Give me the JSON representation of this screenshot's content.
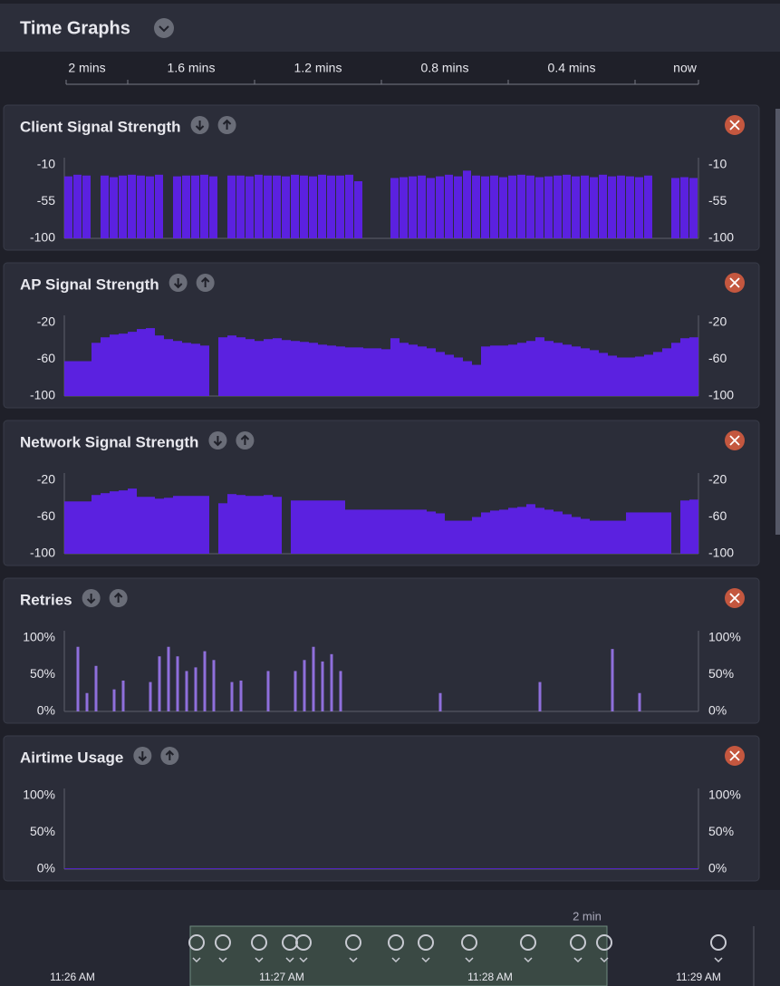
{
  "header": {
    "title": "Time Graphs"
  },
  "time_axis": {
    "labels": [
      "2 mins",
      "1.6 mins",
      "1.2 mins",
      "0.8 mins",
      "0.4 mins",
      "now"
    ]
  },
  "panels": [
    {
      "title": "Client Signal Strength",
      "color": "#5b21e0",
      "ylim": [
        -100,
        -10
      ],
      "yticks": [
        -10,
        -55,
        -100
      ],
      "values": [
        -24,
        -22,
        -23,
        null,
        -23,
        -25,
        -23,
        -22,
        -23,
        -24,
        -22,
        null,
        -24,
        -23,
        -23,
        -22,
        -24,
        null,
        -23,
        -23,
        -24,
        -22,
        -23,
        -23,
        -24,
        -22,
        -23,
        -24,
        -22,
        -23,
        -23,
        -22,
        -30,
        null,
        null,
        null,
        -26,
        -25,
        -24,
        -23,
        -26,
        -24,
        -22,
        -24,
        -17,
        -23,
        -24,
        -23,
        -25,
        -23,
        -22,
        -23,
        -25,
        -24,
        -23,
        -22,
        -24,
        -23,
        -25,
        -22,
        -24,
        -23,
        -24,
        -25,
        -23,
        null,
        null,
        -26,
        -25,
        -26
      ]
    },
    {
      "title": "AP Signal Strength",
      "color": "#5b21e0",
      "ylim": [
        -100,
        -20
      ],
      "yticks": [
        -20,
        -60,
        -100
      ],
      "values": [
        -62,
        -62,
        -62,
        -42,
        -36,
        -33,
        -32,
        -30,
        -27,
        -26,
        -34,
        -38,
        -40,
        -42,
        -43,
        -45,
        -100,
        -36,
        -34,
        -36,
        -38,
        -40,
        -38,
        -37,
        -39,
        -40,
        -41,
        -42,
        -44,
        -45,
        -46,
        -47,
        -47,
        -48,
        -48,
        -49,
        -37,
        -42,
        -44,
        -46,
        -48,
        -52,
        -55,
        -58,
        -62,
        -66,
        -46,
        -45,
        -45,
        -44,
        -42,
        -40,
        -36,
        -40,
        -42,
        -44,
        -46,
        -48,
        -50,
        -53,
        -56,
        -58,
        -58,
        -57,
        -55,
        -52,
        -48,
        -42,
        -37,
        -36
      ]
    },
    {
      "title": "Network Signal Strength",
      "color": "#5b21e0",
      "ylim": [
        -100,
        -20
      ],
      "yticks": [
        -20,
        -60,
        -100
      ],
      "values": [
        -43,
        -43,
        -43,
        -36,
        -34,
        -32,
        -31,
        -29,
        -38,
        -38,
        -40,
        -39,
        -37,
        -37,
        -37,
        -37,
        -100,
        -45,
        -35,
        -36,
        -37,
        -37,
        -36,
        -38,
        -100,
        -42,
        -42,
        -42,
        -42,
        -42,
        -42,
        -52,
        -52,
        -52,
        -52,
        -52,
        -52,
        -52,
        -52,
        -52,
        -54,
        -56,
        -64,
        -64,
        -64,
        -60,
        -55,
        -53,
        -52,
        -50,
        -49,
        -46,
        -50,
        -52,
        -54,
        -57,
        -60,
        -62,
        -64,
        -64,
        -64,
        -64,
        -55,
        -55,
        -55,
        -55,
        -55,
        -100,
        -42,
        -41
      ]
    },
    {
      "title": "Retries",
      "color": "#8f6fdc",
      "ylim": [
        0,
        100
      ],
      "yticks": [
        {
          "value": 100,
          "label": "100%"
        },
        {
          "value": 50,
          "label": "50%"
        },
        {
          "value": 0,
          "label": "0%"
        }
      ],
      "values": [
        0,
        88,
        25,
        62,
        0,
        30,
        42,
        0,
        0,
        40,
        75,
        88,
        75,
        55,
        60,
        82,
        70,
        0,
        40,
        42,
        0,
        0,
        55,
        0,
        0,
        55,
        70,
        88,
        68,
        78,
        55,
        0,
        0,
        0,
        0,
        0,
        0,
        0,
        0,
        0,
        0,
        25,
        0,
        0,
        0,
        0,
        0,
        0,
        0,
        0,
        0,
        0,
        40,
        0,
        0,
        0,
        0,
        0,
        0,
        0,
        85,
        0,
        0,
        25,
        0,
        0,
        0,
        0,
        0,
        0
      ]
    },
    {
      "title": "Airtime Usage",
      "color": "#5b21e0",
      "ylim": [
        0,
        100
      ],
      "yticks": [
        {
          "value": 100,
          "label": "100%"
        },
        {
          "value": 50,
          "label": "50%"
        },
        {
          "value": 0,
          "label": "0%"
        }
      ],
      "values": [
        1,
        1,
        1,
        1,
        1,
        1,
        1,
        1,
        1,
        1,
        1,
        1,
        1,
        1,
        1,
        1,
        1,
        1,
        1,
        1,
        1,
        1,
        1,
        1,
        1,
        1,
        1,
        1,
        1,
        1,
        1,
        1,
        1,
        1,
        1,
        1,
        1,
        1,
        1,
        1,
        1,
        1,
        1,
        1,
        1,
        1,
        1,
        1,
        1,
        1,
        1,
        1,
        1,
        1,
        1,
        1,
        1,
        1,
        1,
        1,
        1,
        1,
        1,
        1,
        1,
        1,
        1,
        1,
        1,
        1
      ]
    }
  ],
  "timeline": {
    "range_label": "2 min",
    "times": [
      "11:26 AM",
      "11:27 AM",
      "11:28 AM",
      "11:29 AM"
    ]
  }
}
